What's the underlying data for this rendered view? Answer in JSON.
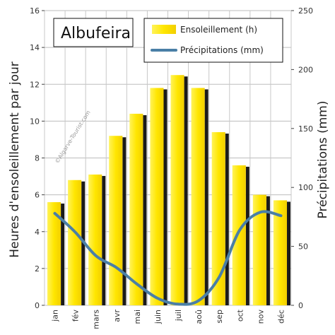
{
  "chart_data": {
    "type": "bar+line",
    "title": "Albufeira",
    "watermark": "©Algarve-Tourist.com",
    "categories": [
      "jan",
      "fév",
      "mars",
      "avr",
      "mai",
      "juin",
      "juil",
      "aoû",
      "sep",
      "oct",
      "nov",
      "déc"
    ],
    "series": [
      {
        "name": "Ensoleillement (h)",
        "type": "bar",
        "axis": "left",
        "color": "#ffea00",
        "values": [
          5.6,
          6.8,
          7.1,
          9.2,
          10.4,
          11.8,
          12.5,
          11.8,
          9.4,
          7.6,
          6.0,
          5.7
        ]
      },
      {
        "name": "Précipitations (mm)",
        "type": "line",
        "axis": "right",
        "color": "#4a7fa6",
        "values": [
          78,
          62,
          42,
          32,
          18,
          6,
          1,
          4,
          24,
          64,
          79,
          76
        ]
      }
    ],
    "y_left": {
      "label": "Heures d'ensoleillement par jour",
      "lim": [
        0,
        16
      ],
      "ticks": [
        0,
        2,
        4,
        6,
        8,
        10,
        12,
        14,
        16
      ]
    },
    "y_right": {
      "label": "Précipitations (mm)",
      "lim": [
        0,
        250
      ],
      "ticks": [
        0,
        50,
        100,
        150,
        200,
        250
      ]
    },
    "grid": true,
    "legend": "top-right"
  }
}
